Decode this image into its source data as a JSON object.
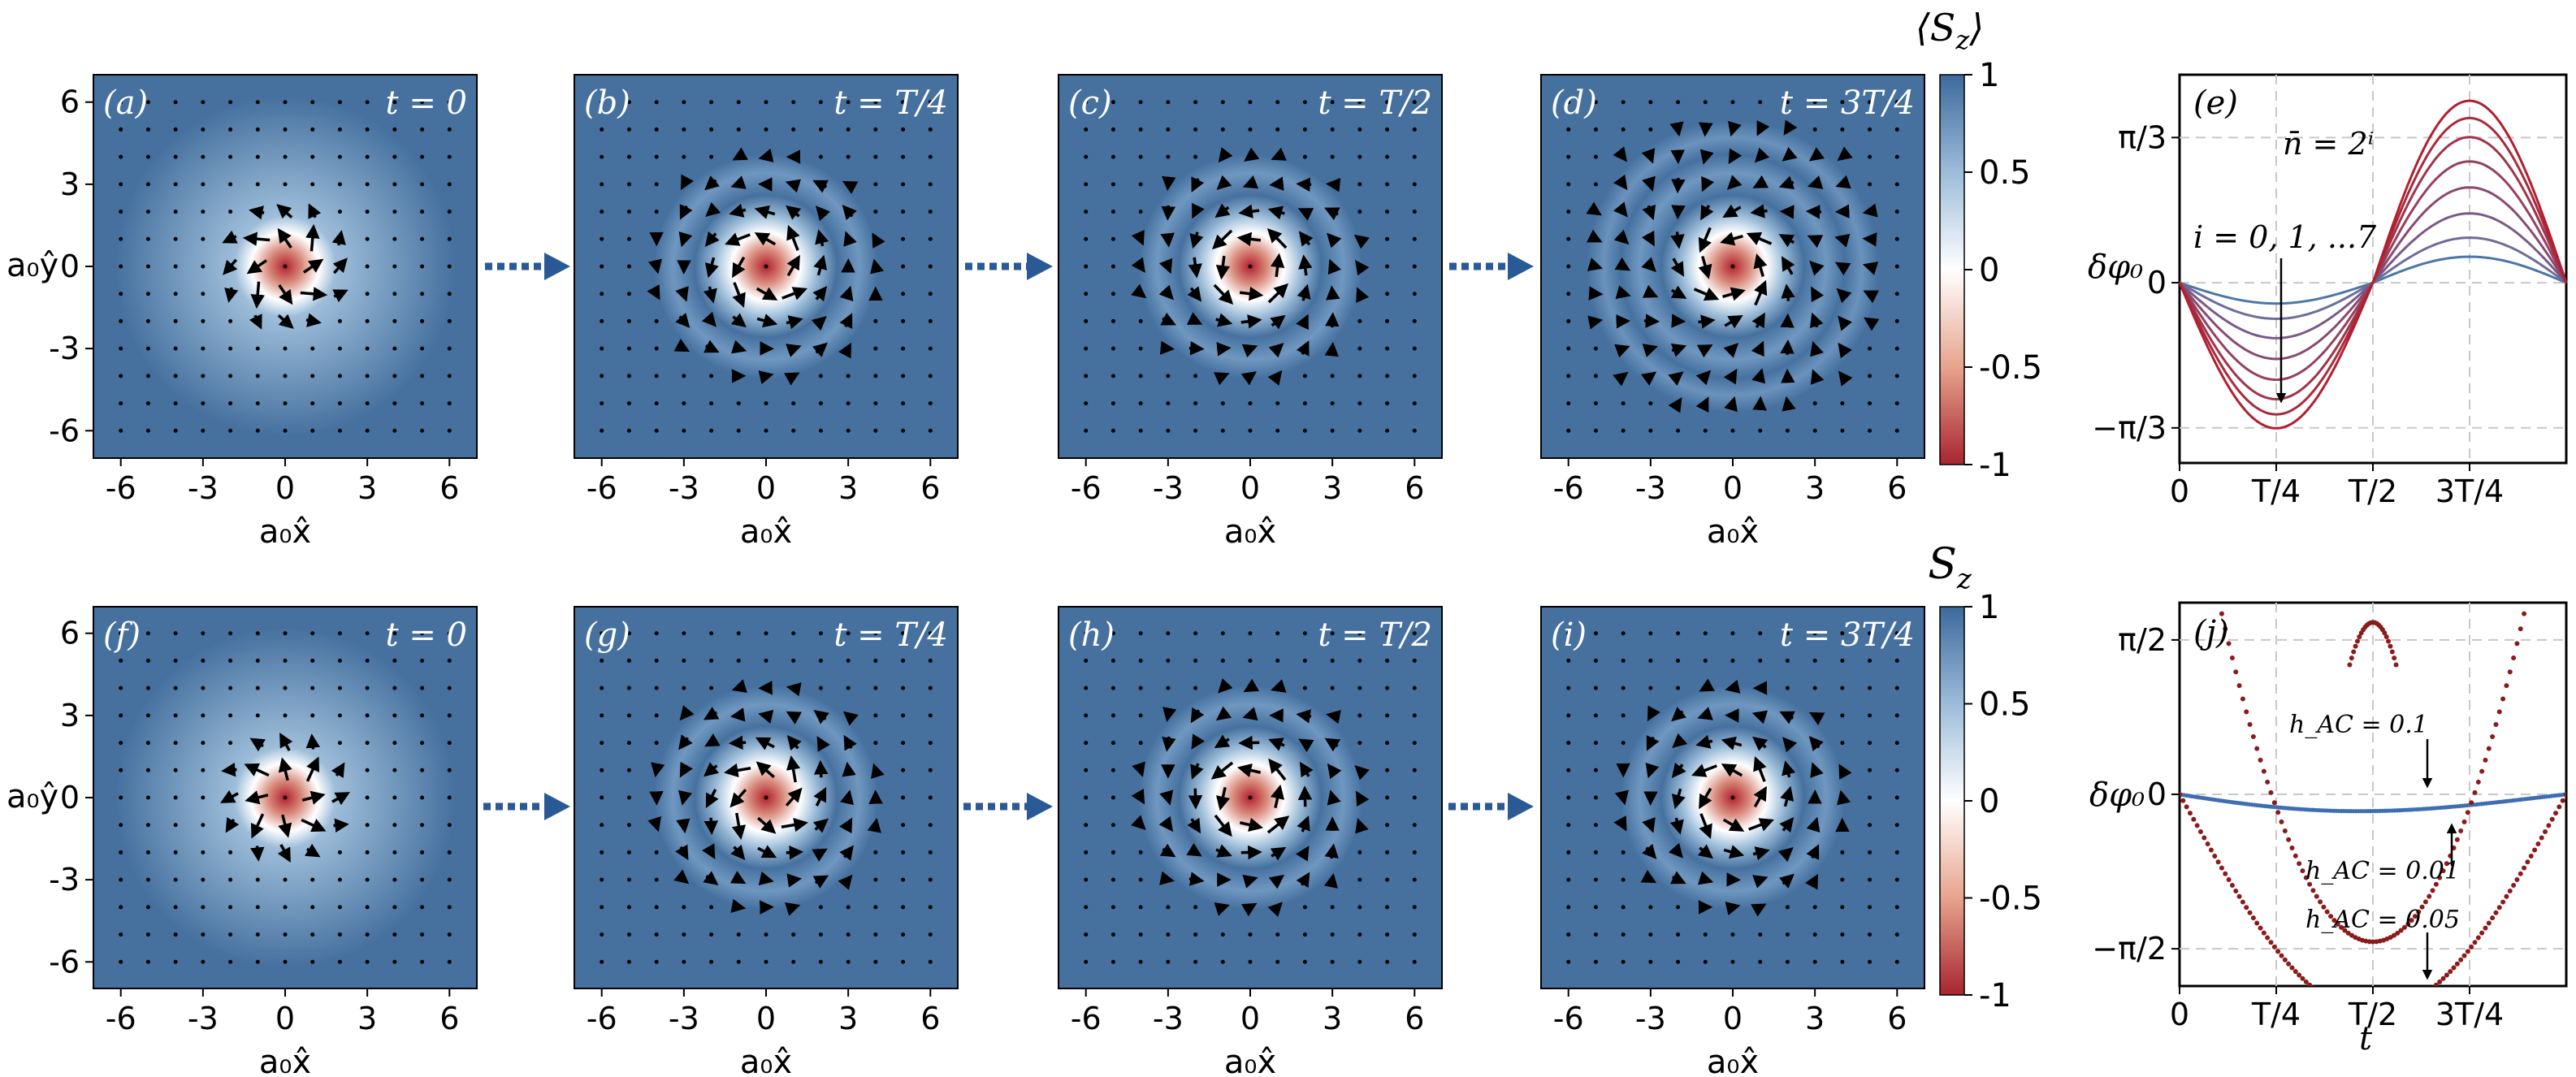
{
  "rows": [
    {
      "colorbar_label": "⟨S_z⟩",
      "panels": [
        {
          "label": "(a)",
          "time": "t = 0",
          "twist": 0.35,
          "rings": 0
        },
        {
          "label": "(b)",
          "time": "t = T/4",
          "twist": 0.8,
          "rings": 1
        },
        {
          "label": "(c)",
          "time": "t = T/2",
          "twist": 1.2,
          "rings": 1
        },
        {
          "label": "(d)",
          "time": "t = 3T/4",
          "twist": 1.6,
          "rings": 2
        }
      ]
    },
    {
      "colorbar_label": "S_z",
      "panels": [
        {
          "label": "(f)",
          "time": "t = 0",
          "twist": 0.0,
          "rings": 0
        },
        {
          "label": "(g)",
          "time": "t = T/4",
          "twist": 0.6,
          "rings": 1
        },
        {
          "label": "(h)",
          "time": "t = T/2",
          "twist": 1.1,
          "rings": 1
        },
        {
          "label": "(i)",
          "time": "t = 3T/4",
          "twist": 0.8,
          "rings": 1
        }
      ]
    }
  ],
  "map_axes": {
    "ticks": [
      "-6",
      "-3",
      "0",
      "3",
      "6"
    ],
    "xlabel": "a₀x̂",
    "ylabel": "a₀ŷ"
  },
  "colorbar_ticks": [
    "1",
    "0.5",
    "0",
    "-0.5",
    "-1"
  ],
  "colors": {
    "spin_up": "#46719f",
    "neutral": "#ffffff",
    "spin_down": "#b2202e",
    "arrow": "#000000"
  },
  "chart_data": [
    {
      "type": "line",
      "panel": "(e)",
      "ylabel": "δφ₀",
      "xticks": [
        "0",
        "T/4",
        "T/2",
        "3T/4"
      ],
      "yticks": [
        "π/3",
        "0",
        "−π/3"
      ],
      "annotation_lines": [
        "n̄ = 2ⁱ",
        "i = 0, 1, ...7"
      ],
      "x_domain": [
        0,
        1
      ],
      "ylim": [
        -1.3,
        1.5
      ],
      "series": [
        {
          "amplitude": 0.15
        },
        {
          "amplitude": 0.26
        },
        {
          "amplitude": 0.4
        },
        {
          "amplitude": 0.55
        },
        {
          "amplitude": 0.7
        },
        {
          "amplitude": 0.84
        },
        {
          "amplitude": 0.95
        },
        {
          "amplitude": 1.05
        }
      ],
      "series_colors": [
        "#4a77a8",
        "#6b6e9c",
        "#7a5a86",
        "#894a70",
        "#96405d",
        "#a0344b",
        "#a92a3c",
        "#b11f2e"
      ]
    },
    {
      "type": "scatter",
      "panel": "(j)",
      "ylabel": "δφ₀",
      "xlabel": "t",
      "xticks": [
        "0",
        "T/4",
        "T/2",
        "3T/4"
      ],
      "yticks": [
        "π/2",
        "0",
        "−π/2"
      ],
      "x_domain": [
        0,
        1
      ],
      "ylim": [
        -1.95,
        1.95
      ],
      "series": [
        {
          "name": "h_AC = 0.01",
          "amplitude": 0.2,
          "color": "#3d6fb0"
        },
        {
          "name": "h_AC = 0.05",
          "amplitude": 1.65,
          "color": "#8b1a1a"
        },
        {
          "name": "h_AC = 0.1",
          "amplitude": 3.3,
          "color": "#8b1a1a"
        }
      ],
      "annotations": [
        "h_AC = 0.1",
        "h_AC = 0.01",
        "h_AC = 0.05"
      ]
    }
  ]
}
